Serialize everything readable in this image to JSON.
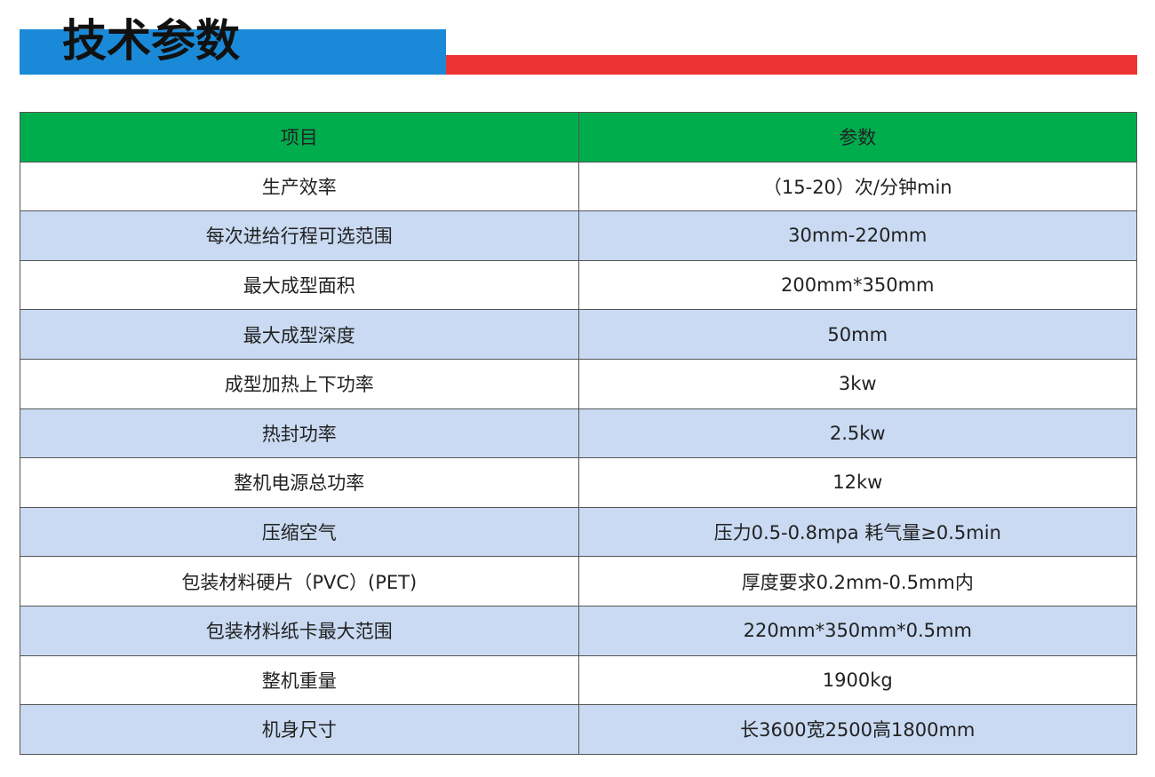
{
  "header": {
    "title": "技术参数"
  },
  "table": {
    "columns": [
      "项目",
      "参数"
    ],
    "rows": [
      [
        "生产效率",
        "（15-20）次/分钟min"
      ],
      [
        "每次进给行程可选范围",
        "30mm-220mm"
      ],
      [
        "最大成型面积",
        "200mm*350mm"
      ],
      [
        "最大成型深度",
        "50mm"
      ],
      [
        "成型加热上下功率",
        "3kw"
      ],
      [
        "热封功率",
        "2.5kw"
      ],
      [
        "整机电源总功率",
        "12kw"
      ],
      [
        "压缩空气",
        "压力0.5-0.8mpa 耗气量≥0.5min"
      ],
      [
        "包装材料硬片（PVC）(PET)",
        "厚度要求0.2mm-0.5mm内"
      ],
      [
        "包装材料纸卡最大范围",
        "220mm*350mm*0.5mm"
      ],
      [
        "整机重量",
        "1900kg"
      ],
      [
        "机身尺寸",
        "长3600宽2500高1800mm"
      ]
    ]
  }
}
